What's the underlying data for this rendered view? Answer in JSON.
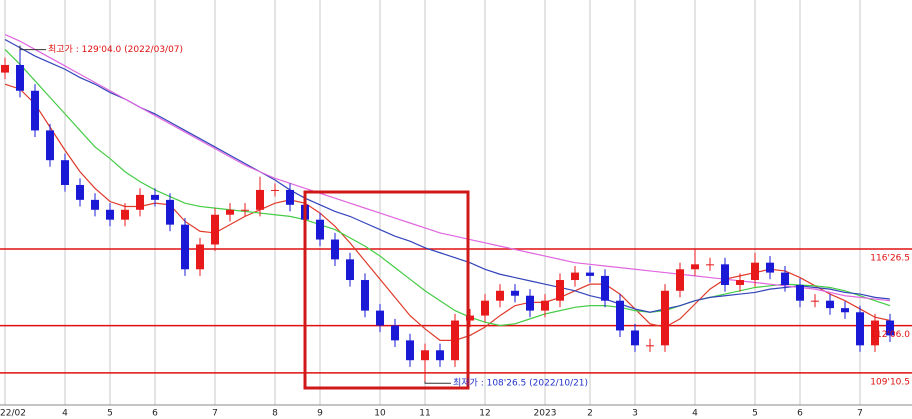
{
  "chart_data": {
    "type": "candlestick",
    "categories": [
      "22/02",
      null,
      null,
      null,
      "4",
      null,
      null,
      "5",
      null,
      null,
      "6",
      null,
      null,
      null,
      "7",
      null,
      null,
      null,
      "8",
      null,
      null,
      "9",
      null,
      null,
      null,
      "10",
      null,
      null,
      "11",
      null,
      null,
      null,
      "12",
      null,
      null,
      null,
      "2023",
      null,
      null,
      "2",
      null,
      null,
      "3",
      null,
      null,
      null,
      "4",
      null,
      null,
      null,
      "5",
      null,
      null,
      "6",
      null,
      null,
      null,
      "7",
      null,
      null
    ],
    "open": [
      127.5,
      127.96,
      126.4,
      124.0,
      122.2,
      120.7,
      119.8,
      119.2,
      118.6,
      119.2,
      120.1,
      119.8,
      118.3,
      115.6,
      117.1,
      118.9,
      119.2,
      119.2,
      120.4,
      120.4,
      119.5,
      118.6,
      117.4,
      116.2,
      114.95,
      113.1,
      112.2,
      111.3,
      110.1,
      110.7,
      110.1,
      112.5,
      112.8,
      113.7,
      114.3,
      114.0,
      113.1,
      113.7,
      114.95,
      115.4,
      115.2,
      113.7,
      111.9,
      111.0,
      111.0,
      114.3,
      115.6,
      115.9,
      115.9,
      114.65,
      114.95,
      116.0,
      115.4,
      114.65,
      113.7,
      113.7,
      113.25,
      113.0,
      111.0,
      112.5
    ],
    "high": [
      128.4,
      129.13,
      126.8,
      124.4,
      122.6,
      121.1,
      120.2,
      119.6,
      119.6,
      120.5,
      120.5,
      120.2,
      118.7,
      117.5,
      119.3,
      119.6,
      119.6,
      121.2,
      120.8,
      120.8,
      119.9,
      119.0,
      117.8,
      116.6,
      115.35,
      113.5,
      112.6,
      111.7,
      111.1,
      111.1,
      112.9,
      113.2,
      114.1,
      114.7,
      114.7,
      114.4,
      114.1,
      115.35,
      115.8,
      115.8,
      115.6,
      114.1,
      112.3,
      111.4,
      114.7,
      116.0,
      116.8,
      116.3,
      116.3,
      115.35,
      116.6,
      116.4,
      115.8,
      115.05,
      114.1,
      114.1,
      113.65,
      113.4,
      112.9,
      112.9
    ],
    "low": [
      127.1,
      126.0,
      123.6,
      121.8,
      120.3,
      119.4,
      118.8,
      118.2,
      118.2,
      118.8,
      119.4,
      117.9,
      115.2,
      115.2,
      116.7,
      118.5,
      118.8,
      118.8,
      120.0,
      119.1,
      118.2,
      117.0,
      115.8,
      114.55,
      112.7,
      111.8,
      110.9,
      109.7,
      108.83,
      109.7,
      109.7,
      112.1,
      112.4,
      113.3,
      113.6,
      112.7,
      112.7,
      113.3,
      114.55,
      114.8,
      113.3,
      111.5,
      110.6,
      110.6,
      110.6,
      113.9,
      115.2,
      115.5,
      114.25,
      114.25,
      114.55,
      115.0,
      114.25,
      113.3,
      113.3,
      112.85,
      112.6,
      110.6,
      110.6,
      111.2
    ],
    "close": [
      127.96,
      126.4,
      124.0,
      122.2,
      120.7,
      119.8,
      119.2,
      118.6,
      119.2,
      120.1,
      119.8,
      118.3,
      115.6,
      117.1,
      118.9,
      119.2,
      119.2,
      120.4,
      120.4,
      119.5,
      118.6,
      117.4,
      116.2,
      114.95,
      113.1,
      112.2,
      111.3,
      110.1,
      110.7,
      110.1,
      112.5,
      112.8,
      113.7,
      114.3,
      114.0,
      113.1,
      113.7,
      114.95,
      115.4,
      115.2,
      113.7,
      111.9,
      111.0,
      111.0,
      114.3,
      115.6,
      115.9,
      115.9,
      114.65,
      114.95,
      116.0,
      115.4,
      114.65,
      113.7,
      113.7,
      113.25,
      113.0,
      111.0,
      112.5,
      111.6
    ],
    "up_color": "#e8191b",
    "down_color": "#1a1ad6",
    "lines": [
      {
        "color": "#e03a2a",
        "values": [
          126.8,
          126.5,
          125.6,
          124.2,
          122.8,
          121.5,
          120.5,
          119.7,
          119.4,
          119.4,
          119.6,
          119.5,
          118.5,
          117.9,
          117.8,
          118.3,
          118.8,
          119.2,
          119.6,
          119.8,
          119.6,
          119.0,
          118.2,
          117.2,
          116.1,
          115.0,
          113.9,
          112.8,
          112.0,
          111.3,
          111.3,
          111.6,
          112.1,
          112.8,
          113.4,
          113.6,
          113.6,
          113.9,
          114.3,
          114.7,
          114.7,
          114.1,
          113.2,
          112.3,
          112.1,
          112.6,
          113.5,
          114.4,
          115.0,
          115.2,
          115.4,
          115.6,
          115.5,
          115.1,
          114.6,
          114.1,
          113.7,
          113.2,
          112.7,
          112.5
        ]
      },
      {
        "color": "#44cc44",
        "values": [
          128.9,
          128.0,
          127.0,
          126.0,
          125.0,
          124.0,
          123.0,
          122.3,
          121.5,
          120.9,
          120.4,
          120.0,
          119.6,
          119.4,
          119.3,
          119.2,
          119.1,
          119.0,
          118.9,
          118.8,
          118.6,
          118.3,
          118.0,
          117.5,
          117.0,
          116.4,
          115.7,
          115.0,
          114.3,
          113.7,
          113.1,
          112.7,
          112.4,
          112.2,
          112.3,
          112.6,
          112.9,
          113.1,
          113.3,
          113.4,
          113.4,
          113.3,
          113.1,
          113.0,
          113.1,
          113.4,
          113.7,
          113.9,
          114.1,
          114.3,
          114.5,
          114.6,
          114.7,
          114.65,
          114.6,
          114.5,
          114.3,
          114.0,
          113.7,
          113.4
        ]
      },
      {
        "color": "#3344bb",
        "values": [
          129.5,
          129.0,
          128.5,
          128.1,
          127.7,
          127.2,
          126.8,
          126.3,
          125.9,
          125.4,
          125.0,
          124.5,
          124.0,
          123.5,
          123.0,
          122.5,
          122.0,
          121.5,
          121.0,
          120.4,
          119.9,
          119.5,
          119.1,
          118.8,
          118.4,
          118.0,
          117.6,
          117.3,
          116.9,
          116.6,
          116.3,
          116.0,
          115.6,
          115.3,
          115.1,
          114.9,
          114.7,
          114.5,
          114.3,
          114.0,
          113.8,
          113.5,
          113.2,
          113.0,
          113.2,
          113.4,
          113.7,
          113.9,
          114.0,
          114.1,
          114.2,
          114.4,
          114.5,
          114.6,
          114.5,
          114.4,
          114.2,
          114.1,
          113.9,
          113.8
        ]
      },
      {
        "color": "#e066e0",
        "values": [
          129.8,
          129.4,
          128.9,
          128.4,
          127.9,
          127.4,
          126.9,
          126.4,
          125.9,
          125.4,
          124.9,
          124.4,
          123.9,
          123.4,
          122.9,
          122.4,
          121.9,
          121.5,
          121.1,
          120.8,
          120.5,
          120.2,
          119.9,
          119.6,
          119.3,
          119.0,
          118.7,
          118.4,
          118.1,
          117.8,
          117.6,
          117.4,
          117.2,
          117.0,
          116.8,
          116.6,
          116.4,
          116.2,
          116.0,
          115.9,
          115.8,
          115.7,
          115.6,
          115.5,
          115.4,
          115.3,
          115.2,
          115.1,
          115.0,
          114.9,
          114.8,
          114.7,
          114.6,
          114.5,
          114.4,
          114.2,
          114.0,
          113.9,
          113.8,
          113.7
        ]
      }
    ],
    "hlines": [
      {
        "value": 116.83,
        "label": "116'26.5"
      },
      {
        "value": 112.19,
        "label": "112'06.0"
      },
      {
        "value": 109.33,
        "label": "109'10.5"
      }
    ],
    "hline_color": "#e01010",
    "annotations": [
      {
        "text": "최고가 : 129'04.0 (2022/03/07)",
        "value": 129.13,
        "color": "#e01010"
      },
      {
        "text": "최저가 : 108'26.5 (2022/10/21)",
        "value": 108.83,
        "color": "#2233cc"
      }
    ],
    "ylim": [
      107.39,
      131.89
    ]
  }
}
